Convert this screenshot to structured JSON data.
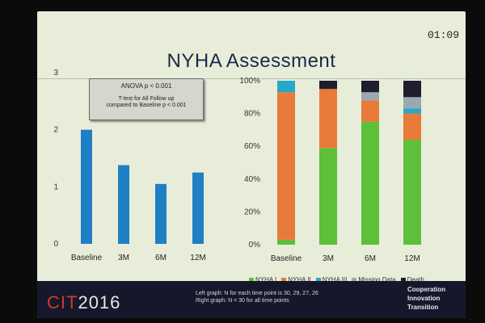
{
  "timer": "01:09",
  "title": "NYHA Assessment",
  "chart_data": [
    {
      "type": "bar",
      "categories": [
        "Baseline",
        "3M",
        "6M",
        "12M"
      ],
      "values": [
        2.0,
        1.38,
        1.05,
        1.25
      ],
      "ylim": [
        0,
        3
      ],
      "yticks": [
        "0",
        "1",
        "2",
        "3"
      ],
      "color": "#1f7fc4",
      "annotation": {
        "line1": "ANOVA p < 0.001",
        "line2": "T-test for All Follow up",
        "line3": "compared to Baseline p < 0.001"
      }
    },
    {
      "type": "bar",
      "stacked": true,
      "categories": [
        "Baseline",
        "3M",
        "6M",
        "12M"
      ],
      "ylim": [
        0,
        100
      ],
      "yticks": [
        "0%",
        "20%",
        "40%",
        "60%",
        "80%",
        "100%"
      ],
      "series": [
        {
          "name": "NYHA I",
          "color": "#5dbf3a",
          "values": [
            3,
            59,
            75,
            64
          ]
        },
        {
          "name": "NYHA II",
          "color": "#e87a3a",
          "values": [
            90,
            36,
            13,
            16
          ]
        },
        {
          "name": "NYHA III",
          "color": "#26a8c6",
          "values": [
            7,
            0,
            0,
            3
          ]
        },
        {
          "name": "Missing Data",
          "color": "#9aa8b3",
          "values": [
            0,
            0,
            5,
            7
          ]
        },
        {
          "name": "Death",
          "color": "#1e1e2e",
          "values": [
            0,
            5,
            7,
            10
          ]
        }
      ]
    }
  ],
  "footer": {
    "logo_prefix": "CIT",
    "logo_year": "2016",
    "footnote_line1": "Left graph:  N for each time point is 30, 29, 27, 26",
    "footnote_line2": "Right graph:  N = 30 for all time points",
    "motto": [
      "Cooperation",
      "Innovation",
      "Transition"
    ]
  }
}
